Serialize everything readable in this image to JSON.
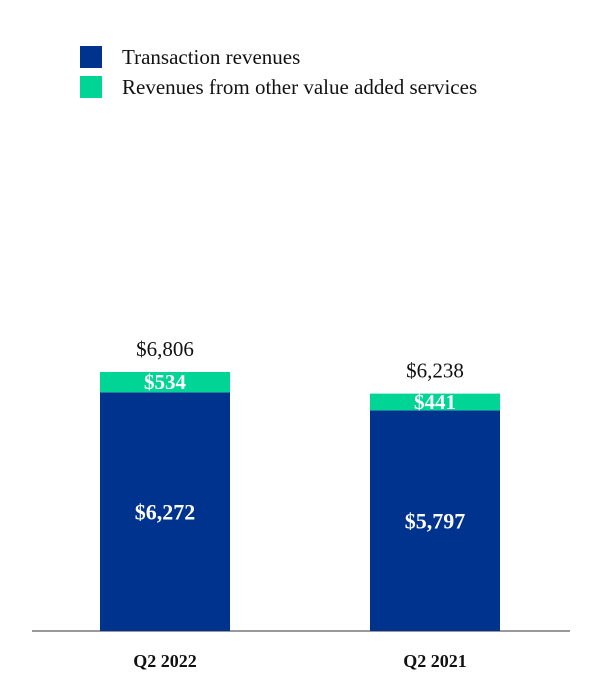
{
  "chart_data": {
    "type": "bar",
    "stacked": true,
    "title": "",
    "xlabel": "",
    "ylabel": "",
    "categories": [
      "Q2 2022",
      "Q2 2021"
    ],
    "series": [
      {
        "name": "Transaction revenues",
        "values": [
          6272,
          5797
        ],
        "value_labels": [
          "$6,272",
          "$5,797"
        ],
        "color": "#00338D"
      },
      {
        "name": "Revenues from other value added services",
        "values": [
          534,
          441
        ],
        "value_labels": [
          "$534",
          "$441"
        ],
        "color": "#00D595"
      }
    ],
    "totals": [
      6806,
      6238
    ],
    "total_labels": [
      "$6,806",
      "$6,238"
    ],
    "ylim": [
      0,
      6806
    ],
    "grid": false,
    "legend_position": "top-left",
    "axis_color": "#999999"
  }
}
